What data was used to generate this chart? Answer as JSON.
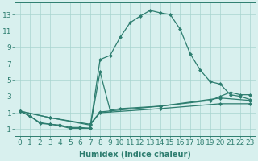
{
  "line1_x": [
    0,
    1,
    2,
    3,
    4,
    5,
    6,
    7,
    8,
    9,
    10,
    11,
    12,
    13,
    14,
    15,
    16,
    17,
    18,
    19,
    20,
    21,
    22,
    23
  ],
  "line1_y": [
    1.2,
    0.6,
    -0.2,
    -0.4,
    -0.6,
    -0.9,
    -0.9,
    -0.9,
    7.5,
    8.0,
    10.2,
    12.0,
    12.8,
    13.5,
    13.2,
    13.0,
    11.2,
    8.2,
    6.2,
    4.8,
    4.5,
    3.2,
    3.0,
    2.6
  ],
  "line2_x": [
    0,
    1,
    2,
    3,
    4,
    5,
    6,
    7,
    8,
    9,
    10,
    14,
    19,
    20,
    21,
    22,
    23
  ],
  "line2_y": [
    1.2,
    0.6,
    -0.3,
    -0.4,
    -0.5,
    -0.8,
    -0.8,
    -0.9,
    6.0,
    1.3,
    1.5,
    1.8,
    2.5,
    3.0,
    3.5,
    3.2,
    3.2
  ],
  "line3_x": [
    0,
    3,
    7,
    8,
    14,
    20,
    23
  ],
  "line3_y": [
    1.2,
    0.4,
    -0.4,
    1.1,
    1.8,
    2.8,
    2.5
  ],
  "line4_x": [
    0,
    3,
    7,
    8,
    14,
    20,
    23
  ],
  "line4_y": [
    1.2,
    0.4,
    -0.5,
    1.0,
    1.5,
    2.1,
    2.1
  ],
  "color": "#2d7d6f",
  "bg_color": "#d8f0ee",
  "grid_color": "#a8d4cf",
  "xlabel": "Humidex (Indice chaleur)",
  "xlim": [
    -0.5,
    23.5
  ],
  "ylim": [
    -1.8,
    14.5
  ],
  "xticks": [
    0,
    1,
    2,
    3,
    4,
    5,
    6,
    7,
    8,
    9,
    10,
    11,
    12,
    13,
    14,
    15,
    16,
    17,
    18,
    19,
    20,
    21,
    22,
    23
  ],
  "yticks": [
    -1,
    1,
    3,
    5,
    7,
    9,
    11,
    13
  ],
  "axis_fontsize": 6.5,
  "xlabel_fontsize": 7.0
}
